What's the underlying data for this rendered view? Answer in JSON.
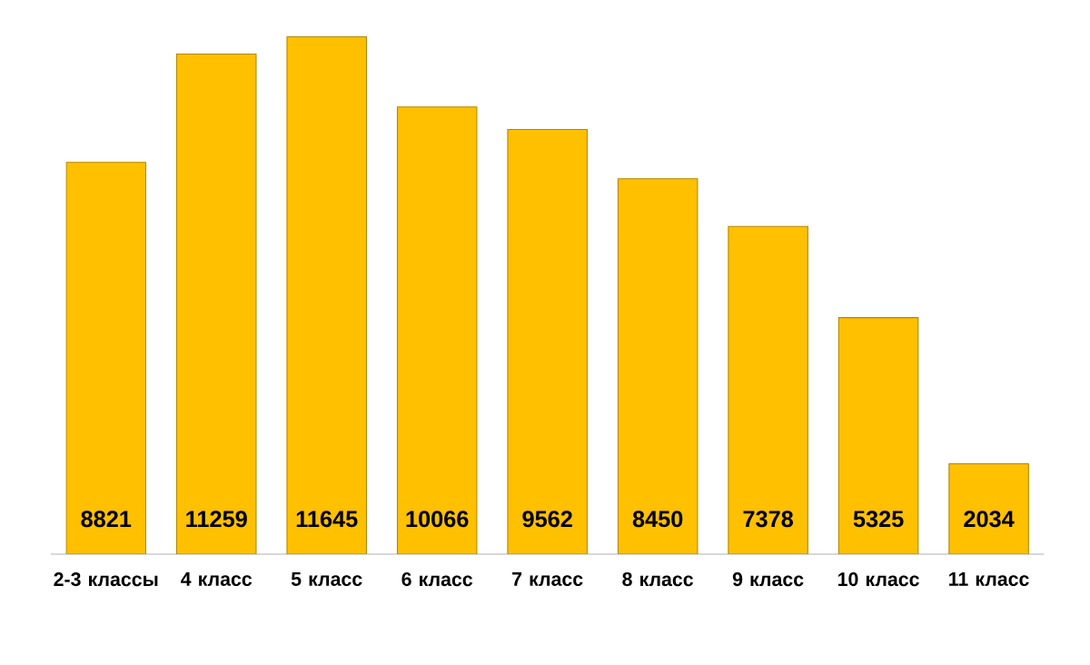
{
  "chart_data": {
    "type": "bar",
    "categories": [
      "2-3 классы",
      "4 класс",
      "5 класс",
      "6 класс",
      "7 класс",
      "8 класс",
      "9 класс",
      "10 класс",
      "11 класс"
    ],
    "values": [
      8821,
      11259,
      11645,
      10066,
      9562,
      8450,
      7378,
      5325,
      2034
    ],
    "color": "#ffc000",
    "data_labels": true
  }
}
